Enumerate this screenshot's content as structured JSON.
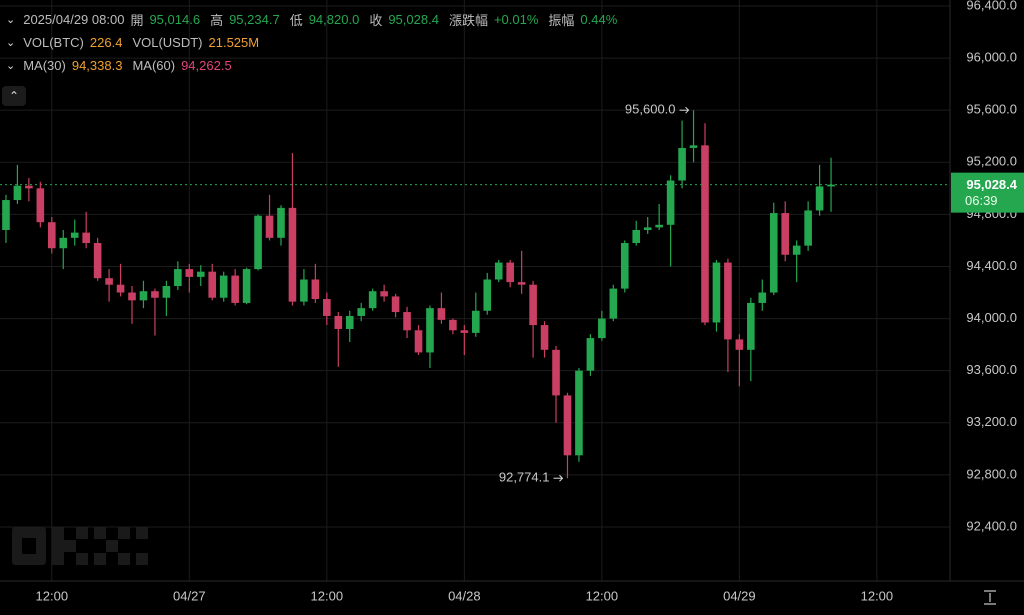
{
  "header": {
    "datetime": "2025/04/29 08:00",
    "items": [
      {
        "label": "開",
        "value": "95,014.6",
        "color": "#25a750"
      },
      {
        "label": "高",
        "value": "95,234.7",
        "color": "#25a750"
      },
      {
        "label": "低",
        "value": "94,820.0",
        "color": "#25a750"
      },
      {
        "label": "收",
        "value": "95,028.4",
        "color": "#25a750"
      },
      {
        "label": "漲跌幅",
        "value": "+0.01%",
        "color": "#25a750"
      },
      {
        "label": "振幅",
        "value": "0.44%",
        "color": "#25a750"
      }
    ],
    "volume": [
      {
        "label": "VOL(BTC)",
        "value": "226.4",
        "color": "#f0a030"
      },
      {
        "label": "VOL(USDT)",
        "value": "21.525M",
        "color": "#f0a030"
      }
    ],
    "ma": [
      {
        "label": "MA(30)",
        "value": "94,338.3",
        "color": "#f0a030"
      },
      {
        "label": "MA(60)",
        "value": "94,262.5",
        "color": "#e0457b"
      }
    ]
  },
  "chart_data": {
    "type": "candlestick",
    "up_color": "#25a750",
    "down_color": "#ca3f64",
    "grid": true,
    "open": [
      94680,
      94910,
      95020,
      95000,
      94740,
      94540,
      94620,
      94660,
      94580,
      94310,
      94260,
      94200,
      94140,
      94210,
      94160,
      94250,
      94380,
      94320,
      94360,
      94160,
      94330,
      94120,
      94380,
      94790,
      94620,
      94850,
      94130,
      94300,
      94150,
      94020,
      93920,
      94020,
      94080,
      94210,
      94170,
      94050,
      93910,
      93740,
      94080,
      93990,
      93910,
      93890,
      94060,
      94300,
      94430,
      94280,
      94260,
      93950,
      93760,
      93410,
      92950,
      93600,
      93850,
      94000,
      94230,
      94580,
      94680,
      94700,
      94720,
      95060,
      95310,
      95330,
      93970,
      94430,
      93840,
      93760,
      94120,
      94200,
      94810,
      94490,
      94560,
      94830,
      95014.6
    ],
    "high": [
      94950,
      95180,
      95080,
      95050,
      94780,
      94680,
      94760,
      94820,
      94620,
      94380,
      94420,
      94250,
      94290,
      94230,
      94290,
      94440,
      94420,
      94410,
      94420,
      94360,
      94380,
      94390,
      94800,
      94950,
      94870,
      95270,
      94380,
      94420,
      94200,
      94050,
      94060,
      94120,
      94230,
      94260,
      94190,
      94090,
      93950,
      94100,
      94200,
      94000,
      93950,
      94200,
      94350,
      94450,
      94450,
      94520,
      94290,
      93980,
      93790,
      93430,
      93620,
      93880,
      94060,
      94260,
      94600,
      94750,
      94780,
      94880,
      95100,
      95520,
      95600,
      95500,
      94450,
      94460,
      93880,
      94160,
      94300,
      94890,
      94900,
      94600,
      94900,
      95180,
      95234.7
    ],
    "low": [
      94580,
      94880,
      94900,
      94700,
      94500,
      94380,
      94560,
      94540,
      94290,
      94130,
      94170,
      93960,
      94080,
      93870,
      94020,
      94220,
      94200,
      94250,
      94140,
      94130,
      94100,
      94110,
      94370,
      94600,
      94560,
      94100,
      94100,
      94120,
      93950,
      93630,
      93820,
      93980,
      94060,
      94130,
      94010,
      93850,
      93720,
      93620,
      93960,
      93880,
      93720,
      93860,
      94030,
      94280,
      94240,
      94190,
      93700,
      93700,
      93200,
      92774.1,
      92900,
      93560,
      93830,
      93980,
      94200,
      94560,
      94650,
      94680,
      94400,
      95000,
      95200,
      93950,
      93900,
      93590,
      93480,
      93520,
      94060,
      94180,
      94440,
      94280,
      94520,
      94790,
      94820
    ],
    "close": [
      94910,
      95020,
      95000,
      94740,
      94540,
      94620,
      94660,
      94580,
      94310,
      94260,
      94200,
      94140,
      94210,
      94160,
      94250,
      94380,
      94320,
      94360,
      94160,
      94330,
      94120,
      94380,
      94790,
      94620,
      94850,
      94130,
      94300,
      94150,
      94020,
      93920,
      94020,
      94080,
      94210,
      94170,
      94050,
      93910,
      93740,
      94080,
      93990,
      93910,
      93890,
      94060,
      94300,
      94430,
      94280,
      94260,
      93950,
      93760,
      93410,
      92950,
      93600,
      93850,
      94000,
      94230,
      94580,
      94680,
      94700,
      94720,
      95060,
      95310,
      95330,
      93970,
      94430,
      93840,
      93760,
      94120,
      94200,
      94810,
      94490,
      94560,
      94830,
      95014.6,
      95028.4
    ],
    "xlim": [
      -0.52,
      82.38
    ],
    "xticks": [
      {
        "value": 4,
        "label": "12:00"
      },
      {
        "value": 16,
        "label": "04/27"
      },
      {
        "value": 28,
        "label": "12:00"
      },
      {
        "value": 40,
        "label": "04/28"
      },
      {
        "value": 52,
        "label": "12:00"
      },
      {
        "value": 64,
        "label": "04/29"
      },
      {
        "value": 76,
        "label": "12:00"
      }
    ],
    "ylim": [
      91985,
      96446
    ],
    "yticks": [
      {
        "value": 92400,
        "label": "92,400.0"
      },
      {
        "value": 92800,
        "label": "92,800.0"
      },
      {
        "value": 93200,
        "label": "93,200.0"
      },
      {
        "value": 93600,
        "label": "93,600.0"
      },
      {
        "value": 94000,
        "label": "94,000.0"
      },
      {
        "value": 94400,
        "label": "94,400.0"
      },
      {
        "value": 94800,
        "label": "94,800.0"
      },
      {
        "value": 95200,
        "label": "95,200.0"
      },
      {
        "value": 95600,
        "label": "95,600.0"
      },
      {
        "value": 96000,
        "label": "96,000.0"
      },
      {
        "value": 96400,
        "label": "96,400.0"
      }
    ],
    "extreme_labels": [
      {
        "value": 95600,
        "label": "95,600.0"
      },
      {
        "value": 92774.1,
        "label": "92,774.1"
      }
    ],
    "last_price": {
      "value": 95028.4,
      "label": "95,028.4",
      "countdown": "06:39",
      "color": "#25a750"
    }
  }
}
